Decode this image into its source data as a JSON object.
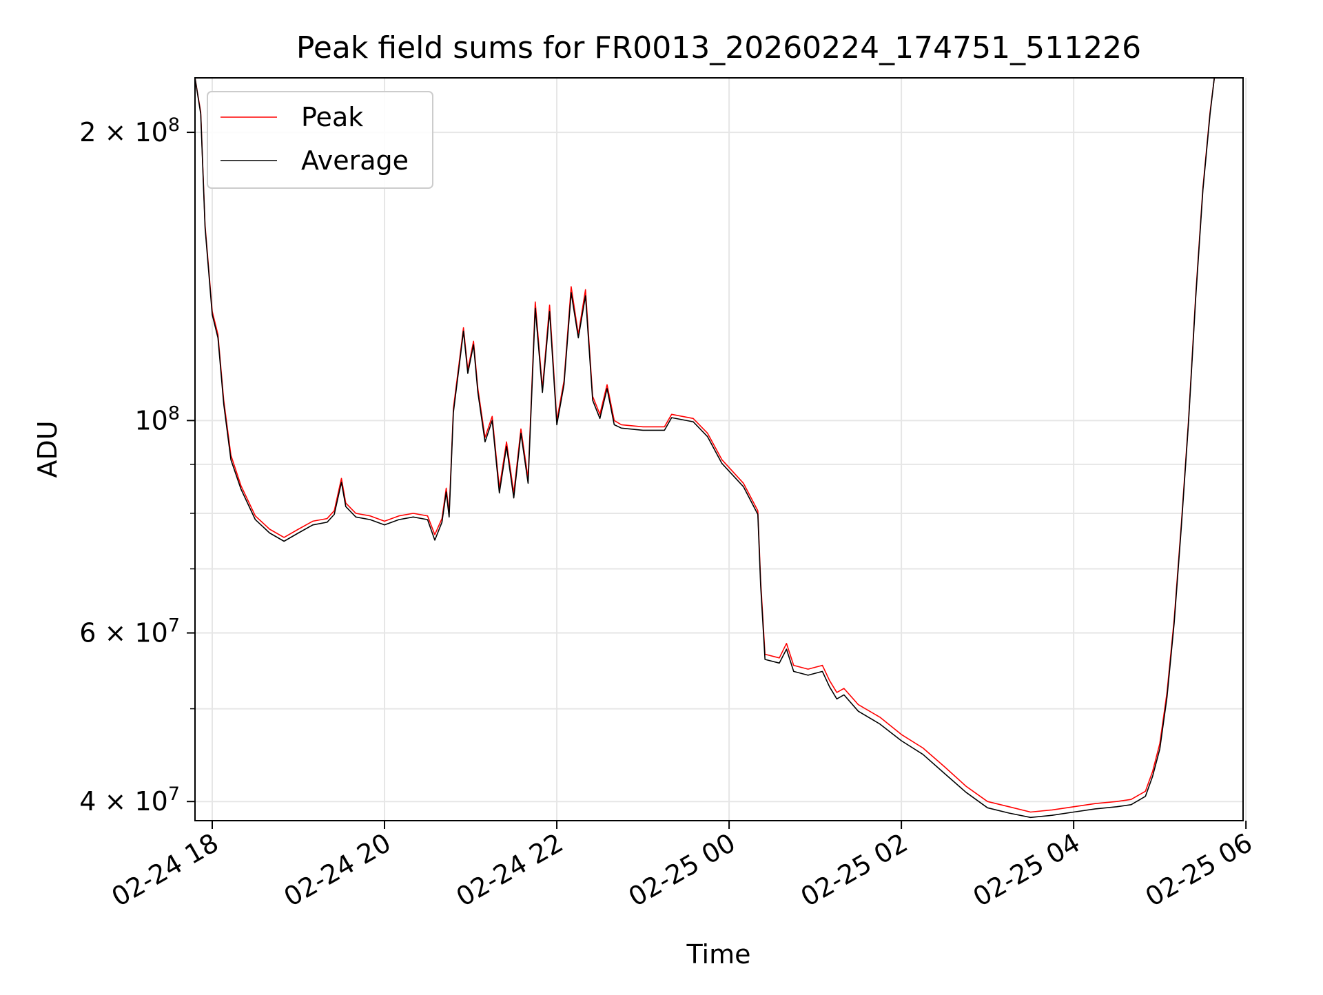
{
  "chart_data": {
    "type": "line",
    "title": "Peak field sums for FR0013_20260224_174751_511226",
    "xlabel": "Time",
    "ylabel": "ADU",
    "yscale": "log",
    "ylim": [
      38200000,
      228000000
    ],
    "xlim": [
      "2026-02-24 17:48",
      "2026-02-25 05:58"
    ],
    "grid": true,
    "legend_position": "upper left",
    "x_ticks": [
      {
        "label": "02-24 18",
        "value": "2026-02-24 18:00"
      },
      {
        "label": "02-24 20",
        "value": "2026-02-24 20:00"
      },
      {
        "label": "02-24 22",
        "value": "2026-02-24 22:00"
      },
      {
        "label": "02-25 00",
        "value": "2026-02-25 00:00"
      },
      {
        "label": "02-25 02",
        "value": "2026-02-25 02:00"
      },
      {
        "label": "02-25 04",
        "value": "2026-02-25 04:00"
      },
      {
        "label": "02-25 06",
        "value": "2026-02-25 06:00"
      }
    ],
    "y_ticks": [
      {
        "value": 200000000,
        "mantissa": "2",
        "times": "×",
        "base": "10",
        "exp": "8"
      },
      {
        "value": 100000000,
        "mantissa": "",
        "times": "",
        "base": "10",
        "exp": "8"
      },
      {
        "value": 60000000,
        "mantissa": "6",
        "times": "×",
        "base": "10",
        "exp": "7"
      },
      {
        "value": 40000000,
        "mantissa": "4",
        "times": "×",
        "base": "10",
        "exp": "7"
      }
    ],
    "y_minor_ticks": [
      50000000,
      70000000,
      80000000,
      90000000
    ],
    "series": [
      {
        "name": "Peak",
        "color": "#ff0000",
        "points": [
          [
            "2026-02-24 17:48",
            228000000
          ],
          [
            "2026-02-24 17:52",
            210000000
          ],
          [
            "2026-02-24 17:55",
            160000000
          ],
          [
            "2026-02-24 18:00",
            130000000
          ],
          [
            "2026-02-24 18:04",
            123000000
          ],
          [
            "2026-02-24 18:08",
            105000000
          ],
          [
            "2026-02-24 18:13",
            92000000
          ],
          [
            "2026-02-24 18:20",
            85500000
          ],
          [
            "2026-02-24 18:30",
            79500000
          ],
          [
            "2026-02-24 18:40",
            77000000
          ],
          [
            "2026-02-24 18:50",
            75500000
          ],
          [
            "2026-02-24 19:00",
            77000000
          ],
          [
            "2026-02-24 19:10",
            78500000
          ],
          [
            "2026-02-24 19:20",
            79000000
          ],
          [
            "2026-02-24 19:25",
            80500000
          ],
          [
            "2026-02-24 19:30",
            87000000
          ],
          [
            "2026-02-24 19:33",
            82000000
          ],
          [
            "2026-02-24 19:40",
            80000000
          ],
          [
            "2026-02-24 19:50",
            79500000
          ],
          [
            "2026-02-24 20:00",
            78500000
          ],
          [
            "2026-02-24 20:10",
            79500000
          ],
          [
            "2026-02-24 20:20",
            80000000
          ],
          [
            "2026-02-24 20:30",
            79500000
          ],
          [
            "2026-02-24 20:35",
            76000000
          ],
          [
            "2026-02-24 20:40",
            79000000
          ],
          [
            "2026-02-24 20:43",
            85000000
          ],
          [
            "2026-02-24 20:45",
            80000000
          ],
          [
            "2026-02-24 20:48",
            103000000
          ],
          [
            "2026-02-24 20:52",
            115000000
          ],
          [
            "2026-02-24 20:55",
            125000000
          ],
          [
            "2026-02-24 20:58",
            113000000
          ],
          [
            "2026-02-24 21:02",
            121000000
          ],
          [
            "2026-02-24 21:05",
            108000000
          ],
          [
            "2026-02-24 21:10",
            96000000
          ],
          [
            "2026-02-24 21:15",
            101000000
          ],
          [
            "2026-02-24 21:20",
            85000000
          ],
          [
            "2026-02-24 21:25",
            95000000
          ],
          [
            "2026-02-24 21:30",
            84000000
          ],
          [
            "2026-02-24 21:35",
            98000000
          ],
          [
            "2026-02-24 21:40",
            87000000
          ],
          [
            "2026-02-24 21:45",
            133000000
          ],
          [
            "2026-02-24 21:50",
            108000000
          ],
          [
            "2026-02-24 21:55",
            132000000
          ],
          [
            "2026-02-24 22:00",
            100000000
          ],
          [
            "2026-02-24 22:05",
            110000000
          ],
          [
            "2026-02-24 22:10",
            138000000
          ],
          [
            "2026-02-24 22:15",
            123000000
          ],
          [
            "2026-02-24 22:20",
            137000000
          ],
          [
            "2026-02-24 22:25",
            106000000
          ],
          [
            "2026-02-24 22:30",
            101500000
          ],
          [
            "2026-02-24 22:35",
            109000000
          ],
          [
            "2026-02-24 22:40",
            100000000
          ],
          [
            "2026-02-24 22:45",
            99000000
          ],
          [
            "2026-02-24 23:00",
            98500000
          ],
          [
            "2026-02-24 23:15",
            98500000
          ],
          [
            "2026-02-24 23:20",
            101500000
          ],
          [
            "2026-02-24 23:35",
            100500000
          ],
          [
            "2026-02-24 23:45",
            97000000
          ],
          [
            "2026-02-24 23:55",
            91000000
          ],
          [
            "2026-02-25 00:10",
            86000000
          ],
          [
            "2026-02-25 00:20",
            80500000
          ],
          [
            "2026-02-25 00:22",
            68000000
          ],
          [
            "2026-02-25 00:25",
            57000000
          ],
          [
            "2026-02-25 00:35",
            56500000
          ],
          [
            "2026-02-25 00:40",
            58500000
          ],
          [
            "2026-02-25 00:45",
            55500000
          ],
          [
            "2026-02-25 00:55",
            55000000
          ],
          [
            "2026-02-25 01:05",
            55500000
          ],
          [
            "2026-02-25 01:10",
            53500000
          ],
          [
            "2026-02-25 01:15",
            52000000
          ],
          [
            "2026-02-25 01:20",
            52500000
          ],
          [
            "2026-02-25 01:30",
            50500000
          ],
          [
            "2026-02-25 01:45",
            49000000
          ],
          [
            "2026-02-25 02:00",
            47000000
          ],
          [
            "2026-02-25 02:15",
            45500000
          ],
          [
            "2026-02-25 02:30",
            43500000
          ],
          [
            "2026-02-25 02:45",
            41500000
          ],
          [
            "2026-02-25 03:00",
            40000000
          ],
          [
            "2026-02-25 03:15",
            39500000
          ],
          [
            "2026-02-25 03:30",
            39000000
          ],
          [
            "2026-02-25 03:45",
            39200000
          ],
          [
            "2026-02-25 04:00",
            39500000
          ],
          [
            "2026-02-25 04:15",
            39800000
          ],
          [
            "2026-02-25 04:30",
            40000000
          ],
          [
            "2026-02-25 04:40",
            40200000
          ],
          [
            "2026-02-25 04:50",
            41000000
          ],
          [
            "2026-02-25 04:55",
            43000000
          ],
          [
            "2026-02-25 05:00",
            46000000
          ],
          [
            "2026-02-25 05:05",
            52000000
          ],
          [
            "2026-02-25 05:10",
            62000000
          ],
          [
            "2026-02-25 05:15",
            78000000
          ],
          [
            "2026-02-25 05:20",
            100000000
          ],
          [
            "2026-02-25 05:25",
            135000000
          ],
          [
            "2026-02-25 05:30",
            175000000
          ],
          [
            "2026-02-25 05:35",
            210000000
          ],
          [
            "2026-02-25 05:38",
            228000000
          ]
        ]
      },
      {
        "name": "Average",
        "color": "#000000",
        "points": [
          [
            "2026-02-24 17:48",
            228000000
          ],
          [
            "2026-02-24 17:52",
            209000000
          ],
          [
            "2026-02-24 17:55",
            159000000
          ],
          [
            "2026-02-24 18:00",
            129000000
          ],
          [
            "2026-02-24 18:04",
            122000000
          ],
          [
            "2026-02-24 18:08",
            104000000
          ],
          [
            "2026-02-24 18:13",
            91000000
          ],
          [
            "2026-02-24 18:20",
            84800000
          ],
          [
            "2026-02-24 18:30",
            78800000
          ],
          [
            "2026-02-24 18:40",
            76300000
          ],
          [
            "2026-02-24 18:50",
            74800000
          ],
          [
            "2026-02-24 19:00",
            76300000
          ],
          [
            "2026-02-24 19:10",
            77800000
          ],
          [
            "2026-02-24 19:20",
            78300000
          ],
          [
            "2026-02-24 19:25",
            79800000
          ],
          [
            "2026-02-24 19:30",
            86200000
          ],
          [
            "2026-02-24 19:33",
            81300000
          ],
          [
            "2026-02-24 19:40",
            79300000
          ],
          [
            "2026-02-24 19:50",
            78800000
          ],
          [
            "2026-02-24 20:00",
            77800000
          ],
          [
            "2026-02-24 20:10",
            78800000
          ],
          [
            "2026-02-24 20:20",
            79300000
          ],
          [
            "2026-02-24 20:30",
            78800000
          ],
          [
            "2026-02-24 20:35",
            75000000
          ],
          [
            "2026-02-24 20:40",
            78300000
          ],
          [
            "2026-02-24 20:43",
            84200000
          ],
          [
            "2026-02-24 20:45",
            79300000
          ],
          [
            "2026-02-24 20:48",
            102000000
          ],
          [
            "2026-02-24 20:52",
            114000000
          ],
          [
            "2026-02-24 20:55",
            124000000
          ],
          [
            "2026-02-24 20:58",
            112000000
          ],
          [
            "2026-02-24 21:02",
            120000000
          ],
          [
            "2026-02-24 21:05",
            107000000
          ],
          [
            "2026-02-24 21:10",
            95000000
          ],
          [
            "2026-02-24 21:15",
            100000000
          ],
          [
            "2026-02-24 21:20",
            84000000
          ],
          [
            "2026-02-24 21:25",
            94000000
          ],
          [
            "2026-02-24 21:30",
            83000000
          ],
          [
            "2026-02-24 21:35",
            97000000
          ],
          [
            "2026-02-24 21:40",
            86000000
          ],
          [
            "2026-02-24 21:45",
            131000000
          ],
          [
            "2026-02-24 21:50",
            107000000
          ],
          [
            "2026-02-24 21:55",
            130000000
          ],
          [
            "2026-02-24 22:00",
            99000000
          ],
          [
            "2026-02-24 22:05",
            109000000
          ],
          [
            "2026-02-24 22:10",
            136000000
          ],
          [
            "2026-02-24 22:15",
            122000000
          ],
          [
            "2026-02-24 22:20",
            135000000
          ],
          [
            "2026-02-24 22:25",
            105000000
          ],
          [
            "2026-02-24 22:30",
            100500000
          ],
          [
            "2026-02-24 22:35",
            108000000
          ],
          [
            "2026-02-24 22:40",
            99000000
          ],
          [
            "2026-02-24 22:45",
            98200000
          ],
          [
            "2026-02-24 23:00",
            97700000
          ],
          [
            "2026-02-24 23:15",
            97700000
          ],
          [
            "2026-02-24 23:20",
            100700000
          ],
          [
            "2026-02-24 23:35",
            99700000
          ],
          [
            "2026-02-24 23:45",
            96200000
          ],
          [
            "2026-02-24 23:55",
            90200000
          ],
          [
            "2026-02-25 00:10",
            85300000
          ],
          [
            "2026-02-25 00:20",
            79800000
          ],
          [
            "2026-02-25 00:22",
            67200000
          ],
          [
            "2026-02-25 00:25",
            56300000
          ],
          [
            "2026-02-25 00:35",
            55800000
          ],
          [
            "2026-02-25 00:40",
            57700000
          ],
          [
            "2026-02-25 00:45",
            54700000
          ],
          [
            "2026-02-25 00:55",
            54200000
          ],
          [
            "2026-02-25 01:05",
            54700000
          ],
          [
            "2026-02-25 01:10",
            52700000
          ],
          [
            "2026-02-25 01:15",
            51200000
          ],
          [
            "2026-02-25 01:20",
            51700000
          ],
          [
            "2026-02-25 01:30",
            49700000
          ],
          [
            "2026-02-25 01:45",
            48200000
          ],
          [
            "2026-02-25 02:00",
            46300000
          ],
          [
            "2026-02-25 02:15",
            44800000
          ],
          [
            "2026-02-25 02:30",
            42800000
          ],
          [
            "2026-02-25 02:45",
            40900000
          ],
          [
            "2026-02-25 03:00",
            39400000
          ],
          [
            "2026-02-25 03:15",
            38900000
          ],
          [
            "2026-02-25 03:30",
            38500000
          ],
          [
            "2026-02-25 03:45",
            38700000
          ],
          [
            "2026-02-25 04:00",
            39000000
          ],
          [
            "2026-02-25 04:15",
            39300000
          ],
          [
            "2026-02-25 04:30",
            39500000
          ],
          [
            "2026-02-25 04:40",
            39700000
          ],
          [
            "2026-02-25 04:50",
            40500000
          ],
          [
            "2026-02-25 04:55",
            42500000
          ],
          [
            "2026-02-25 05:00",
            45400000
          ],
          [
            "2026-02-25 05:05",
            51400000
          ],
          [
            "2026-02-25 05:10",
            61400000
          ],
          [
            "2026-02-25 05:15",
            77400000
          ],
          [
            "2026-02-25 05:20",
            99400000
          ],
          [
            "2026-02-25 05:25",
            134000000
          ],
          [
            "2026-02-25 05:30",
            174000000
          ],
          [
            "2026-02-25 05:35",
            209000000
          ],
          [
            "2026-02-25 05:38",
            228000000
          ]
        ]
      }
    ]
  }
}
